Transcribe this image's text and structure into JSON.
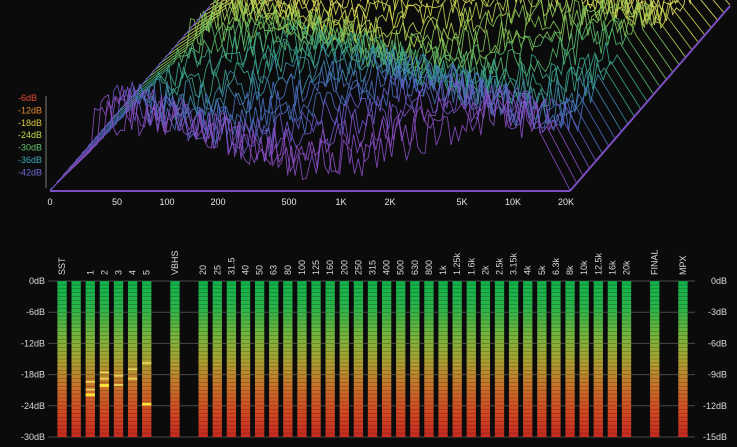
{
  "waterfall": {
    "db_labels": [
      {
        "text": "-6dB",
        "color": "#e4472f"
      },
      {
        "text": "-12dB",
        "color": "#e38a34"
      },
      {
        "text": "-18dB",
        "color": "#d6c540"
      },
      {
        "text": "-24dB",
        "color": "#c6d84a"
      },
      {
        "text": "-30dB",
        "color": "#63c468"
      },
      {
        "text": "-36dB",
        "color": "#40a8b0"
      },
      {
        "text": "-42dB",
        "color": "#6b6ad0"
      }
    ],
    "freq_ticks": [
      "0",
      "50",
      "100",
      "200",
      "500",
      "1K",
      "2K",
      "5K",
      "10K",
      "20K"
    ],
    "line_colors": [
      "#e5e06a",
      "#d8dc52",
      "#b6d452",
      "#86c858",
      "#56b86c",
      "#3aa58c",
      "#3b8ba8",
      "#4a6fc0",
      "#6a58c8",
      "#8a4ec2"
    ]
  },
  "meters": {
    "scale_left": [
      "0dB",
      "-6dB",
      "-12dB",
      "-18dB",
      "-24dB",
      "-30dB"
    ],
    "scale_right": [
      "0dB",
      "-3dB",
      "-6dB",
      "-9dB",
      "-12dB",
      "-15dB"
    ],
    "channels": [
      {
        "label": "SST",
        "level": 1.0,
        "peak": null
      },
      {
        "label": "",
        "level": 1.0,
        "peak": null
      },
      {
        "label": "1",
        "level": 1.0,
        "peak": 0.72,
        "ticks": [
          0.64,
          0.69
        ]
      },
      {
        "label": "2",
        "level": 1.0,
        "peak": 0.66,
        "ticks": [
          0.58,
          0.62
        ]
      },
      {
        "label": "3",
        "level": 1.0,
        "peak": null,
        "ticks": [
          0.6,
          0.66
        ]
      },
      {
        "label": "4",
        "level": 1.0,
        "peak": null,
        "ticks": [
          0.56,
          0.62
        ]
      },
      {
        "label": "5",
        "level": 1.0,
        "peak": 0.78,
        "ticks": [
          0.52
        ]
      },
      {
        "label": "",
        "level": 0,
        "peak": null
      },
      {
        "label": "VBHS",
        "level": 1.0,
        "peak": null
      },
      {
        "label": "",
        "level": 0,
        "peak": null
      },
      {
        "label": "20",
        "level": 1.0,
        "peak": null
      },
      {
        "label": "25",
        "level": 1.0,
        "peak": null
      },
      {
        "label": "31.5",
        "level": 1.0,
        "peak": null
      },
      {
        "label": "40",
        "level": 1.0,
        "peak": null
      },
      {
        "label": "50",
        "level": 1.0,
        "peak": null
      },
      {
        "label": "63",
        "level": 1.0,
        "peak": null
      },
      {
        "label": "80",
        "level": 1.0,
        "peak": null
      },
      {
        "label": "100",
        "level": 1.0,
        "peak": null
      },
      {
        "label": "125",
        "level": 1.0,
        "peak": null
      },
      {
        "label": "160",
        "level": 1.0,
        "peak": null
      },
      {
        "label": "200",
        "level": 1.0,
        "peak": null
      },
      {
        "label": "250",
        "level": 1.0,
        "peak": null
      },
      {
        "label": "315",
        "level": 1.0,
        "peak": null
      },
      {
        "label": "400",
        "level": 1.0,
        "peak": null
      },
      {
        "label": "500",
        "level": 1.0,
        "peak": null
      },
      {
        "label": "630",
        "level": 1.0,
        "peak": null
      },
      {
        "label": "800",
        "level": 1.0,
        "peak": null
      },
      {
        "label": "1k",
        "level": 1.0,
        "peak": null
      },
      {
        "label": "1.25k",
        "level": 1.0,
        "peak": null
      },
      {
        "label": "1.6k",
        "level": 1.0,
        "peak": null
      },
      {
        "label": "2k",
        "level": 1.0,
        "peak": null
      },
      {
        "label": "2.5k",
        "level": 1.0,
        "peak": null
      },
      {
        "label": "3.15k",
        "level": 1.0,
        "peak": null
      },
      {
        "label": "4k",
        "level": 1.0,
        "peak": null
      },
      {
        "label": "5k",
        "level": 1.0,
        "peak": null
      },
      {
        "label": "6.3k",
        "level": 1.0,
        "peak": null
      },
      {
        "label": "8k",
        "level": 1.0,
        "peak": null
      },
      {
        "label": "10k",
        "level": 1.0,
        "peak": null
      },
      {
        "label": "12.5k",
        "level": 1.0,
        "peak": null
      },
      {
        "label": "16k",
        "level": 1.0,
        "peak": null
      },
      {
        "label": "20k",
        "level": 1.0,
        "peak": null
      },
      {
        "label": "",
        "level": 0,
        "peak": null
      },
      {
        "label": "FINAL",
        "level": 1.0,
        "peak": null
      },
      {
        "label": "",
        "level": 0,
        "peak": null
      },
      {
        "label": "MPX",
        "level": 1.0,
        "peak": null
      }
    ],
    "gradient": [
      "#12b24a",
      "#28b44a",
      "#6fb53c",
      "#a8a432",
      "#c8742a",
      "#d24a22",
      "#c82a20"
    ],
    "text_color": "#d8d8d8"
  }
}
